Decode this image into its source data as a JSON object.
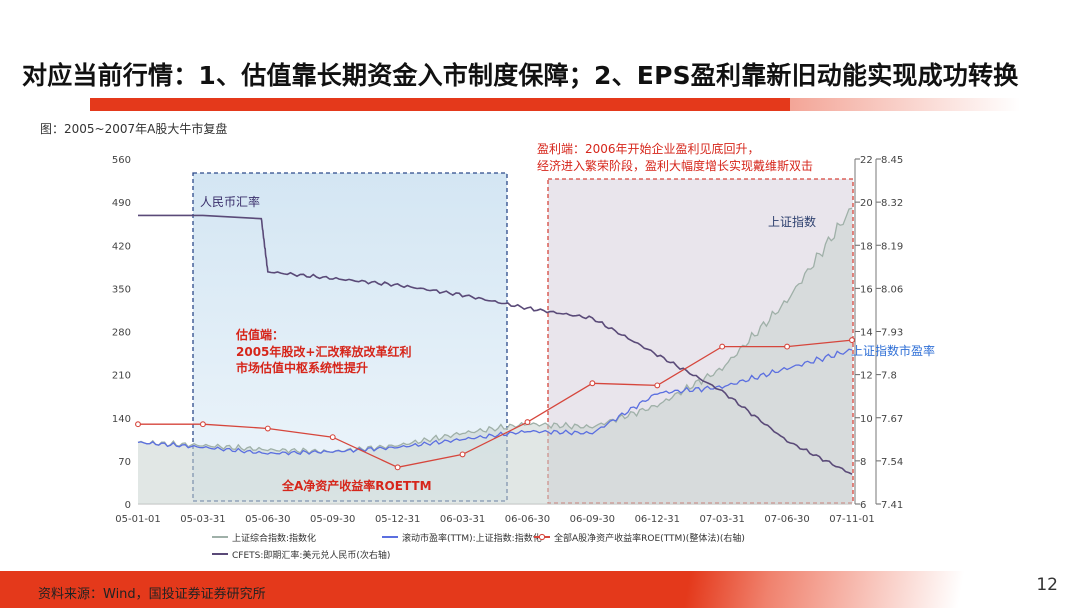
{
  "title": "对应当前行情：1、估值靠长期资金入市制度保障；2、EPS盈利靠新旧动能实现成功转换",
  "figure_caption": "图：2005~2007年A股大牛市复盘",
  "source": "资料来源：Wind，国投证券证券研究所",
  "page_number": "12",
  "colors": {
    "accent": "#e4391b",
    "index": "#9fb0a8",
    "pe": "#5b6fe0",
    "roe": "#d6463c",
    "fx": "#5a4a78"
  },
  "chart_data": {
    "type": "line",
    "title": "2005~2007年A股大牛市复盘",
    "x_ticks": [
      "05-01-01",
      "05-03-31",
      "05-06-30",
      "05-09-30",
      "05-12-31",
      "06-03-31",
      "06-06-30",
      "06-09-30",
      "06-12-31",
      "07-03-31",
      "07-06-30",
      "07-11-01"
    ],
    "y_left": {
      "ticks": [
        0,
        70,
        140,
        210,
        280,
        350,
        420,
        490,
        560
      ],
      "ylim": [
        0,
        560
      ]
    },
    "y_right1": {
      "ticks": [
        6,
        8,
        10,
        12,
        14,
        16,
        18,
        20,
        22
      ],
      "ylim": [
        6,
        22
      ]
    },
    "y_right2": {
      "ticks": [
        7.41,
        7.54,
        7.67,
        7.8,
        7.93,
        8.06,
        8.19,
        8.32,
        8.45
      ],
      "ylim": [
        7.41,
        8.45
      ]
    },
    "series": [
      {
        "name": "上证综合指数:指数化",
        "axis": "left",
        "x": [
          0,
          1,
          2,
          3,
          4,
          5,
          6,
          7,
          8,
          9,
          10,
          11
        ],
        "values": [
          100,
          95,
          88,
          85,
          95,
          115,
          130,
          125,
          160,
          220,
          330,
          480
        ]
      },
      {
        "name": "滚动市盈率(TTM):上证指数:指数化",
        "axis": "left",
        "x": [
          0,
          1,
          2,
          3,
          4,
          5,
          6,
          7,
          8,
          9,
          10,
          11
        ],
        "values": [
          100,
          92,
          82,
          85,
          92,
          105,
          118,
          115,
          180,
          190,
          220,
          250
        ]
      },
      {
        "name": "全部A股净资产收益率ROE(TTM)(整体法)(右轴)",
        "axis": "right1",
        "x": [
          0,
          1,
          2,
          3,
          4,
          5,
          6,
          7,
          8,
          9,
          10,
          11
        ],
        "values": [
          9.7,
          9.7,
          9.5,
          9.1,
          7.7,
          8.3,
          9.8,
          11.6,
          11.5,
          13.3,
          13.3,
          13.6
        ]
      },
      {
        "name": "CFETS:即期汇率:美元兑人民币(次右轴)",
        "axis": "right2",
        "x": [
          0,
          1,
          1.9,
          2,
          3,
          4,
          5,
          6,
          7,
          8,
          9,
          10,
          11
        ],
        "values": [
          8.28,
          8.28,
          8.27,
          8.11,
          8.09,
          8.07,
          8.04,
          8.0,
          7.97,
          7.86,
          7.75,
          7.6,
          7.5
        ]
      }
    ],
    "legend": {
      "position": "bottom",
      "items": [
        "上证综合指数:指数化",
        "滚动市盈率(TTM):上证指数:指数化",
        "全部A股净资产收益率ROE(TTM)(整体法)(右轴)",
        "CFETS:即期汇率:美元兑人民币(次右轴)"
      ]
    },
    "annotations": {
      "fx_label": "人民币汇率",
      "valuation_title": "估值端：",
      "valuation_line1": "2005年股改+汇改释放改革红利",
      "valuation_line2": "市场估值中枢系统性提升",
      "earnings_line1": "盈利端：2006年开始企业盈利见底回升，",
      "earnings_line2": "经济进入繁荣阶段，盈利大幅度增长实现戴维斯双击",
      "index_label": "上证指数",
      "pe_label": "上证指数市盈率",
      "roe_label": "全A净资产收益率ROETTM"
    }
  }
}
